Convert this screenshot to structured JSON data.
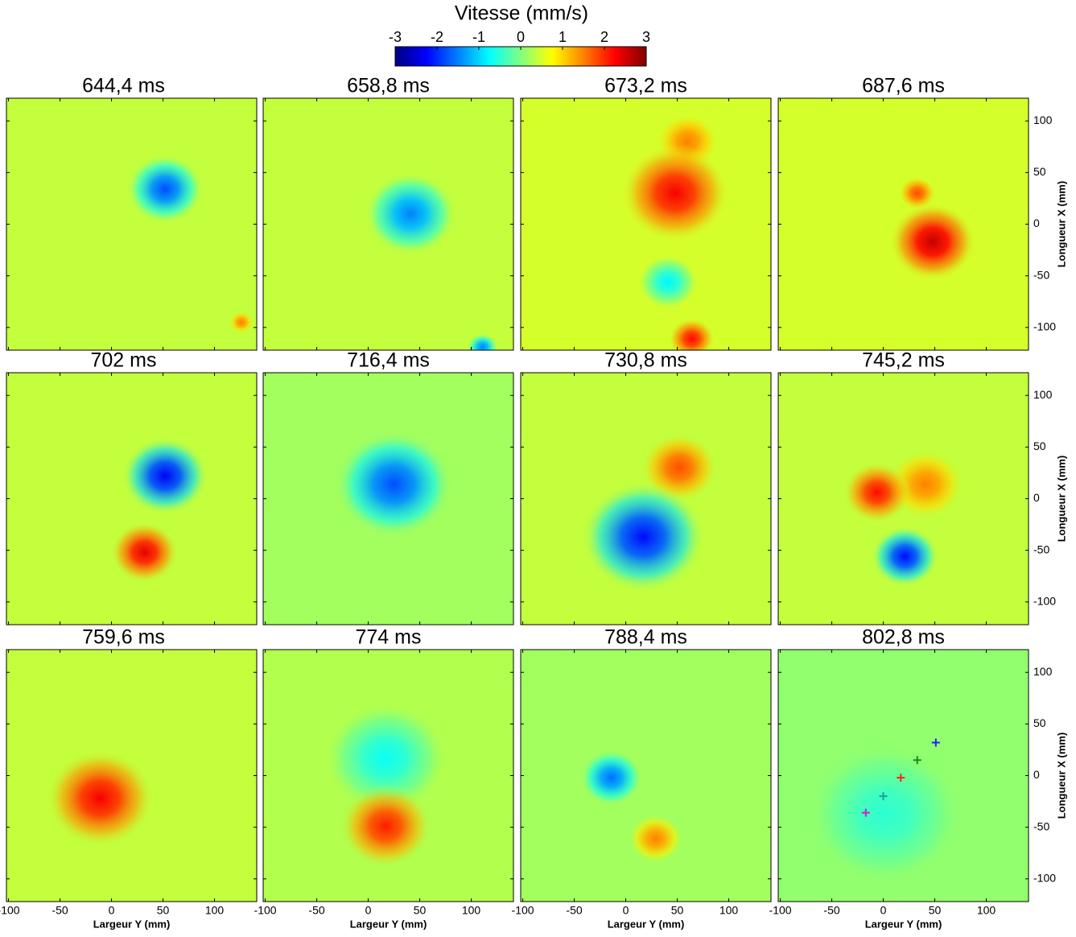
{
  "colorbar": {
    "title": "Vitesse (mm/s)",
    "clim": [
      -3,
      3
    ],
    "ticks": [
      -3,
      -2,
      -1,
      0,
      1,
      2,
      3
    ]
  },
  "axes": {
    "xlim": [
      -102,
      141
    ],
    "ylim": [
      -122,
      122
    ],
    "xticks": [
      -100,
      -50,
      0,
      50,
      100
    ],
    "yticks": [
      -100,
      -50,
      0,
      50,
      100
    ],
    "xlabel": "Largeur Y (mm)",
    "ylabel": "Longueur X (mm)"
  },
  "chart_data": [
    {
      "type": "heatmap",
      "title": "644,4 ms",
      "background": 0.4,
      "blobs": [
        {
          "x": 52,
          "y": 34,
          "v": -1.8,
          "r": 25
        },
        {
          "x": 126,
          "y": -95,
          "v": 1.5,
          "r": 8
        }
      ]
    },
    {
      "type": "heatmap",
      "title": "658,8 ms",
      "background": 0.4,
      "blobs": [
        {
          "x": 41,
          "y": 10,
          "v": -1.5,
          "r": 30
        },
        {
          "x": 111,
          "y": -119,
          "v": -1.5,
          "r": 10
        }
      ]
    },
    {
      "type": "heatmap",
      "title": "673,2 ms",
      "background": 0.5,
      "blobs": [
        {
          "x": 60,
          "y": 80,
          "v": 1.5,
          "r": 20
        },
        {
          "x": 48,
          "y": 30,
          "v": 2.3,
          "r": 35
        },
        {
          "x": 41,
          "y": -56,
          "v": -0.8,
          "r": 20
        },
        {
          "x": 64,
          "y": -111,
          "v": 2.2,
          "r": 15
        }
      ]
    },
    {
      "type": "heatmap",
      "title": "687,6 ms",
      "background": 0.5,
      "blobs": [
        {
          "x": 33,
          "y": 30,
          "v": 1.8,
          "r": 12
        },
        {
          "x": 48,
          "y": -17,
          "v": 2.6,
          "r": 28
        }
      ]
    },
    {
      "type": "heatmap",
      "title": "702 ms",
      "background": 0.4,
      "blobs": [
        {
          "x": 52,
          "y": 22,
          "v": -2.3,
          "r": 28
        },
        {
          "x": 32,
          "y": -52,
          "v": 2.4,
          "r": 22
        }
      ]
    },
    {
      "type": "heatmap",
      "title": "716,4 ms",
      "background": 0.2,
      "blobs": [
        {
          "x": 25,
          "y": 14,
          "v": -1.8,
          "r": 38
        }
      ]
    },
    {
      "type": "heatmap",
      "title": "730,8 ms",
      "background": 0.4,
      "blobs": [
        {
          "x": 52,
          "y": 30,
          "v": 1.8,
          "r": 25
        },
        {
          "x": 17,
          "y": -37,
          "v": -2.2,
          "r": 40
        }
      ]
    },
    {
      "type": "heatmap",
      "title": "745,2 ms",
      "background": 0.4,
      "blobs": [
        {
          "x": 41,
          "y": 14,
          "v": 1.5,
          "r": 25
        },
        {
          "x": -6,
          "y": 6,
          "v": 2.2,
          "r": 22
        },
        {
          "x": 21,
          "y": -56,
          "v": -2.2,
          "r": 22
        }
      ]
    },
    {
      "type": "heatmap",
      "title": "759,6 ms",
      "background": 0.4,
      "blobs": [
        {
          "x": -11,
          "y": -22,
          "v": 2.3,
          "r": 35
        }
      ]
    },
    {
      "type": "heatmap",
      "title": "774 ms",
      "background": 0.3,
      "blobs": [
        {
          "x": 17,
          "y": 17,
          "v": -0.7,
          "r": 40
        },
        {
          "x": 17,
          "y": -49,
          "v": 2.1,
          "r": 30
        }
      ]
    },
    {
      "type": "heatmap",
      "title": "788,4 ms",
      "background": 0.2,
      "blobs": [
        {
          "x": -14,
          "y": -2,
          "v": -1.6,
          "r": 20
        },
        {
          "x": 29,
          "y": -61,
          "v": 1.5,
          "r": 18
        }
      ]
    },
    {
      "type": "heatmap",
      "title": "802,8 ms",
      "background": 0.1,
      "blobs": [
        {
          "x": 2,
          "y": -37,
          "v": -0.5,
          "r": 50
        }
      ],
      "markers": [
        {
          "x": 51,
          "y": 32,
          "color": "#2020ff"
        },
        {
          "x": 33,
          "y": 15,
          "color": "#1a8a1a"
        },
        {
          "x": 17,
          "y": -2,
          "color": "#ff2020"
        },
        {
          "x": 0,
          "y": -20,
          "color": "#20a0a0"
        },
        {
          "x": -17,
          "y": -36,
          "color": "#d020d0"
        }
      ]
    }
  ]
}
